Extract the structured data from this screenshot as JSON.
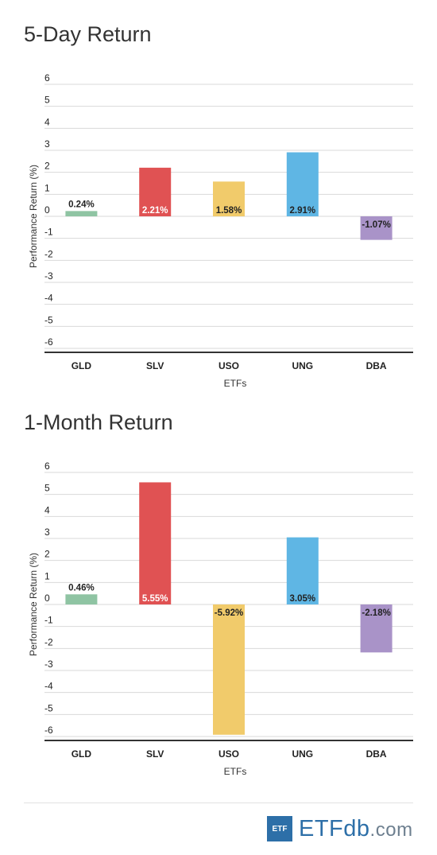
{
  "chart_data": [
    {
      "type": "bar",
      "title": "5-Day Return",
      "xlabel": "ETFs",
      "ylabel": "Performance Return (%)",
      "ylim": [
        -6,
        6
      ],
      "yticks": [
        "6",
        "5",
        "4",
        "3",
        "2",
        "1",
        "0",
        "-1",
        "-2",
        "-3",
        "-4",
        "-5",
        "-6"
      ],
      "categories": [
        "GLD",
        "SLV",
        "USO",
        "UNG",
        "DBA"
      ],
      "values": [
        0.24,
        2.21,
        1.58,
        2.91,
        -1.07
      ],
      "labels": [
        "0.24%",
        "2.21%",
        "1.58%",
        "2.91%",
        "-1.07%"
      ],
      "colors": [
        "#8fc4a3",
        "#e05253",
        "#f1cb6b",
        "#5fb6e4",
        "#a993c8"
      ],
      "grid": true
    },
    {
      "type": "bar",
      "title": "1-Month Return",
      "xlabel": "ETFs",
      "ylabel": "Performance Return (%)",
      "ylim": [
        -6,
        6
      ],
      "yticks": [
        "6",
        "5",
        "4",
        "3",
        "2",
        "1",
        "0",
        "-1",
        "-2",
        "-3",
        "-4",
        "-5",
        "-6"
      ],
      "categories": [
        "GLD",
        "SLV",
        "USO",
        "UNG",
        "DBA"
      ],
      "values": [
        0.46,
        5.55,
        -5.92,
        3.05,
        -2.18
      ],
      "labels": [
        "0.46%",
        "5.55%",
        "-5.92%",
        "3.05%",
        "-2.18%"
      ],
      "colors": [
        "#8fc4a3",
        "#e05253",
        "#f1cb6b",
        "#5fb6e4",
        "#a993c8"
      ],
      "grid": true
    }
  ],
  "footer": {
    "logo_box": "ETF",
    "logo_main": "ETF",
    "logo_db": "db",
    "logo_com": ".com"
  }
}
